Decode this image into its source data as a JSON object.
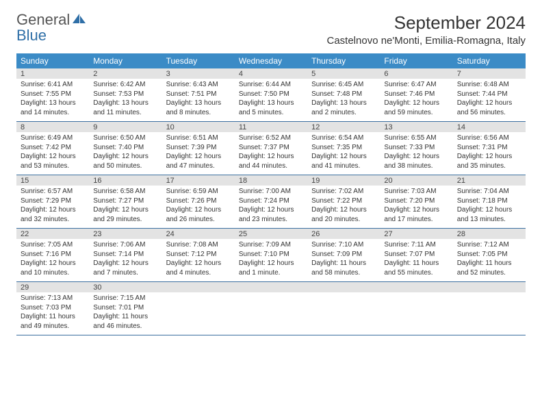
{
  "logo": {
    "text_gray": "General",
    "text_blue": "Blue",
    "icon_color": "#2f6fa7"
  },
  "header": {
    "month_title": "September 2024",
    "location": "Castelnovo ne'Monti, Emilia-Romagna, Italy"
  },
  "colors": {
    "header_bar": "#3b8bc6",
    "daynum_bg": "#e3e3e3",
    "rule": "#3b6fa0",
    "text": "#333333"
  },
  "days_of_week": [
    "Sunday",
    "Monday",
    "Tuesday",
    "Wednesday",
    "Thursday",
    "Friday",
    "Saturday"
  ],
  "weeks": [
    [
      {
        "n": "1",
        "sunrise": "Sunrise: 6:41 AM",
        "sunset": "Sunset: 7:55 PM",
        "day1": "Daylight: 13 hours",
        "day2": "and 14 minutes."
      },
      {
        "n": "2",
        "sunrise": "Sunrise: 6:42 AM",
        "sunset": "Sunset: 7:53 PM",
        "day1": "Daylight: 13 hours",
        "day2": "and 11 minutes."
      },
      {
        "n": "3",
        "sunrise": "Sunrise: 6:43 AM",
        "sunset": "Sunset: 7:51 PM",
        "day1": "Daylight: 13 hours",
        "day2": "and 8 minutes."
      },
      {
        "n": "4",
        "sunrise": "Sunrise: 6:44 AM",
        "sunset": "Sunset: 7:50 PM",
        "day1": "Daylight: 13 hours",
        "day2": "and 5 minutes."
      },
      {
        "n": "5",
        "sunrise": "Sunrise: 6:45 AM",
        "sunset": "Sunset: 7:48 PM",
        "day1": "Daylight: 13 hours",
        "day2": "and 2 minutes."
      },
      {
        "n": "6",
        "sunrise": "Sunrise: 6:47 AM",
        "sunset": "Sunset: 7:46 PM",
        "day1": "Daylight: 12 hours",
        "day2": "and 59 minutes."
      },
      {
        "n": "7",
        "sunrise": "Sunrise: 6:48 AM",
        "sunset": "Sunset: 7:44 PM",
        "day1": "Daylight: 12 hours",
        "day2": "and 56 minutes."
      }
    ],
    [
      {
        "n": "8",
        "sunrise": "Sunrise: 6:49 AM",
        "sunset": "Sunset: 7:42 PM",
        "day1": "Daylight: 12 hours",
        "day2": "and 53 minutes."
      },
      {
        "n": "9",
        "sunrise": "Sunrise: 6:50 AM",
        "sunset": "Sunset: 7:40 PM",
        "day1": "Daylight: 12 hours",
        "day2": "and 50 minutes."
      },
      {
        "n": "10",
        "sunrise": "Sunrise: 6:51 AM",
        "sunset": "Sunset: 7:39 PM",
        "day1": "Daylight: 12 hours",
        "day2": "and 47 minutes."
      },
      {
        "n": "11",
        "sunrise": "Sunrise: 6:52 AM",
        "sunset": "Sunset: 7:37 PM",
        "day1": "Daylight: 12 hours",
        "day2": "and 44 minutes."
      },
      {
        "n": "12",
        "sunrise": "Sunrise: 6:54 AM",
        "sunset": "Sunset: 7:35 PM",
        "day1": "Daylight: 12 hours",
        "day2": "and 41 minutes."
      },
      {
        "n": "13",
        "sunrise": "Sunrise: 6:55 AM",
        "sunset": "Sunset: 7:33 PM",
        "day1": "Daylight: 12 hours",
        "day2": "and 38 minutes."
      },
      {
        "n": "14",
        "sunrise": "Sunrise: 6:56 AM",
        "sunset": "Sunset: 7:31 PM",
        "day1": "Daylight: 12 hours",
        "day2": "and 35 minutes."
      }
    ],
    [
      {
        "n": "15",
        "sunrise": "Sunrise: 6:57 AM",
        "sunset": "Sunset: 7:29 PM",
        "day1": "Daylight: 12 hours",
        "day2": "and 32 minutes."
      },
      {
        "n": "16",
        "sunrise": "Sunrise: 6:58 AM",
        "sunset": "Sunset: 7:27 PM",
        "day1": "Daylight: 12 hours",
        "day2": "and 29 minutes."
      },
      {
        "n": "17",
        "sunrise": "Sunrise: 6:59 AM",
        "sunset": "Sunset: 7:26 PM",
        "day1": "Daylight: 12 hours",
        "day2": "and 26 minutes."
      },
      {
        "n": "18",
        "sunrise": "Sunrise: 7:00 AM",
        "sunset": "Sunset: 7:24 PM",
        "day1": "Daylight: 12 hours",
        "day2": "and 23 minutes."
      },
      {
        "n": "19",
        "sunrise": "Sunrise: 7:02 AM",
        "sunset": "Sunset: 7:22 PM",
        "day1": "Daylight: 12 hours",
        "day2": "and 20 minutes."
      },
      {
        "n": "20",
        "sunrise": "Sunrise: 7:03 AM",
        "sunset": "Sunset: 7:20 PM",
        "day1": "Daylight: 12 hours",
        "day2": "and 17 minutes."
      },
      {
        "n": "21",
        "sunrise": "Sunrise: 7:04 AM",
        "sunset": "Sunset: 7:18 PM",
        "day1": "Daylight: 12 hours",
        "day2": "and 13 minutes."
      }
    ],
    [
      {
        "n": "22",
        "sunrise": "Sunrise: 7:05 AM",
        "sunset": "Sunset: 7:16 PM",
        "day1": "Daylight: 12 hours",
        "day2": "and 10 minutes."
      },
      {
        "n": "23",
        "sunrise": "Sunrise: 7:06 AM",
        "sunset": "Sunset: 7:14 PM",
        "day1": "Daylight: 12 hours",
        "day2": "and 7 minutes."
      },
      {
        "n": "24",
        "sunrise": "Sunrise: 7:08 AM",
        "sunset": "Sunset: 7:12 PM",
        "day1": "Daylight: 12 hours",
        "day2": "and 4 minutes."
      },
      {
        "n": "25",
        "sunrise": "Sunrise: 7:09 AM",
        "sunset": "Sunset: 7:10 PM",
        "day1": "Daylight: 12 hours",
        "day2": "and 1 minute."
      },
      {
        "n": "26",
        "sunrise": "Sunrise: 7:10 AM",
        "sunset": "Sunset: 7:09 PM",
        "day1": "Daylight: 11 hours",
        "day2": "and 58 minutes."
      },
      {
        "n": "27",
        "sunrise": "Sunrise: 7:11 AM",
        "sunset": "Sunset: 7:07 PM",
        "day1": "Daylight: 11 hours",
        "day2": "and 55 minutes."
      },
      {
        "n": "28",
        "sunrise": "Sunrise: 7:12 AM",
        "sunset": "Sunset: 7:05 PM",
        "day1": "Daylight: 11 hours",
        "day2": "and 52 minutes."
      }
    ],
    [
      {
        "n": "29",
        "sunrise": "Sunrise: 7:13 AM",
        "sunset": "Sunset: 7:03 PM",
        "day1": "Daylight: 11 hours",
        "day2": "and 49 minutes."
      },
      {
        "n": "30",
        "sunrise": "Sunrise: 7:15 AM",
        "sunset": "Sunset: 7:01 PM",
        "day1": "Daylight: 11 hours",
        "day2": "and 46 minutes."
      },
      null,
      null,
      null,
      null,
      null
    ]
  ]
}
